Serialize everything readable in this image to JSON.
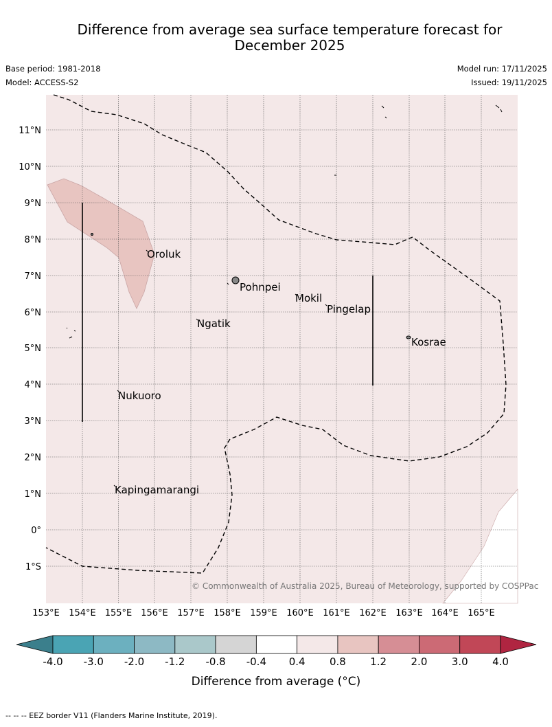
{
  "title_line1": "Difference from average sea surface temperature forecast for",
  "title_line2": "December 2025",
  "base_period": "Base period: 1981-2018",
  "model": "Model: ACCESS-S2",
  "model_run": "Model run: 17/11/2025",
  "issued": "Issued: 19/11/2025",
  "copyright": "© Commonwealth of Australia 2025, Bureau of Meteorology, supported by COSPPac",
  "footer_note": "--  --  -- EEZ border V11 (Flanders Marine Institute, 2019).",
  "lon_labels": [
    "153°E",
    "154°E",
    "155°E",
    "156°E",
    "157°E",
    "158°E",
    "159°E",
    "160°E",
    "161°E",
    "162°E",
    "163°E",
    "164°E",
    "165°E"
  ],
  "lat_labels": [
    "11°N",
    "10°N",
    "9°N",
    "8°N",
    "7°N",
    "6°N",
    "5°N",
    "4°N",
    "3°N",
    "2°N",
    "1°N",
    "0°",
    "1°S"
  ],
  "places": [
    "Oroluk",
    "Pohnpei",
    "Mokil",
    "Pingelap",
    "Ngatik",
    "Kosrae",
    "Nukuoro",
    "Kapingamarangi"
  ],
  "colorbar": {
    "title": "Difference from average (°C)",
    "ticks": [
      "-4.0",
      "-3.0",
      "-2.0",
      "-1.2",
      "-0.8",
      "-0.4",
      "0.4",
      "0.8",
      "1.2",
      "2.0",
      "3.0",
      "4.0"
    ],
    "colors": [
      "#4aa4b4",
      "#6cb0bf",
      "#8db9c4",
      "#aac8ca",
      "#d5d5d5",
      "#ffffff",
      "#f4e8e8",
      "#e8c5c1",
      "#d68e95",
      "#cc6a75",
      "#c14757"
    ],
    "under_color": "#3b7f8c",
    "over_color": "#b02541"
  },
  "map_colors": {
    "background": "#f4e8e8",
    "warm_patch": "#e8c5c1",
    "grid": "#555555"
  }
}
